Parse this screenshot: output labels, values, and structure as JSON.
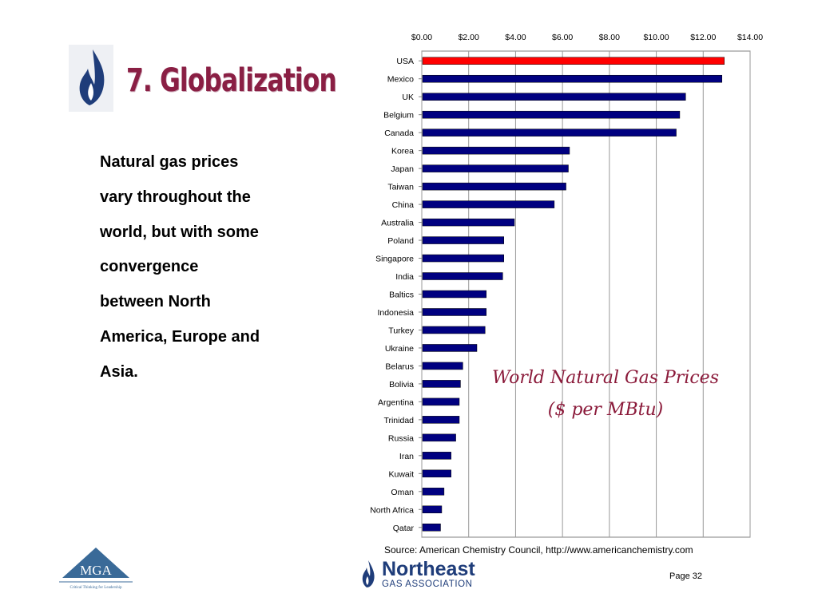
{
  "slide": {
    "title": "7. Globalization",
    "body_lines": [
      "Natural gas prices",
      "vary throughout the",
      "world, but with some",
      "convergence",
      "between North",
      "America, Europe and",
      "Asia."
    ],
    "source": "Source:  American Chemistry Council, http://www.americanchemistry.com",
    "page_label": "Page 32"
  },
  "logos": {
    "mga_text": "MGA",
    "mga_tagline": "Critical Thinking for Leadership",
    "nga_name": "Northeast",
    "nga_sub": "GAS ASSOCIATION"
  },
  "colors": {
    "title": "#8a1f44",
    "bar": "#000080",
    "highlight_bar": "#ff0000",
    "chart_title": "#8b1a3a"
  },
  "chart_data": {
    "type": "bar",
    "orientation": "horizontal",
    "title_lines": [
      "World Natural Gas Prices",
      "($ per MBtu)"
    ],
    "categories": [
      "USA",
      "Mexico",
      "UK",
      "Belgium",
      "Canada",
      "Korea",
      "Japan",
      "Taiwan",
      "China",
      "Australia",
      "Poland",
      "Singapore",
      "India",
      "Baltics",
      "Indonesia",
      "Turkey",
      "Ukraine",
      "Belarus",
      "Bolivia",
      "Argentina",
      "Trinidad",
      "Russia",
      "Iran",
      "Kuwait",
      "Oman",
      "North Africa",
      "Qatar"
    ],
    "values": [
      12.9,
      12.8,
      11.25,
      11.0,
      10.85,
      6.3,
      6.25,
      6.15,
      5.65,
      3.95,
      3.5,
      3.5,
      3.45,
      2.75,
      2.75,
      2.7,
      2.35,
      1.75,
      1.65,
      1.6,
      1.6,
      1.45,
      1.25,
      1.25,
      0.95,
      0.85,
      0.8
    ],
    "highlight_index": 0,
    "xlim": [
      0,
      14
    ],
    "ticks": [
      0,
      2,
      4,
      6,
      8,
      10,
      12,
      14
    ],
    "tick_labels": [
      "$0.00",
      "$2.00",
      "$4.00",
      "$6.00",
      "$8.00",
      "$10.00",
      "$12.00",
      "$14.00"
    ],
    "xaxis_position": "top",
    "grid": "vertical",
    "xlabel": "",
    "ylabel": ""
  }
}
